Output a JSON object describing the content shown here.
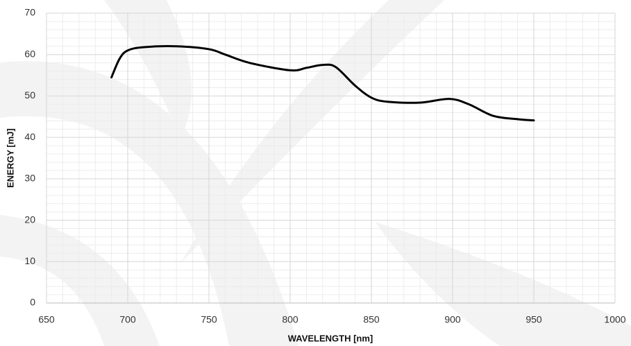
{
  "chart_data": {
    "type": "line",
    "xlabel": "WAVELENGTH [nm]",
    "ylabel": "ENERGY [mJ]",
    "x": [
      690,
      695,
      700,
      710,
      730,
      750,
      760,
      775,
      800,
      810,
      820,
      828,
      840,
      850,
      860,
      880,
      898,
      910,
      925,
      940,
      950
    ],
    "series": [
      {
        "name": "Energy",
        "color": "#000000",
        "values": [
          54.5,
          59,
          61,
          61.8,
          62,
          61.3,
          60,
          58,
          56.2,
          56.8,
          57.5,
          57,
          52.5,
          49.6,
          48.6,
          48.4,
          49.3,
          48,
          45.2,
          44.4,
          44.1
        ]
      }
    ],
    "xlim": [
      650,
      1000
    ],
    "xticks": [
      650,
      700,
      750,
      800,
      850,
      900,
      950,
      1000
    ],
    "ylim": [
      0,
      70
    ],
    "yticks": [
      0,
      10,
      20,
      30,
      40,
      50,
      60,
      70
    ],
    "grid": true,
    "minor_grid": true,
    "legend": false
  }
}
